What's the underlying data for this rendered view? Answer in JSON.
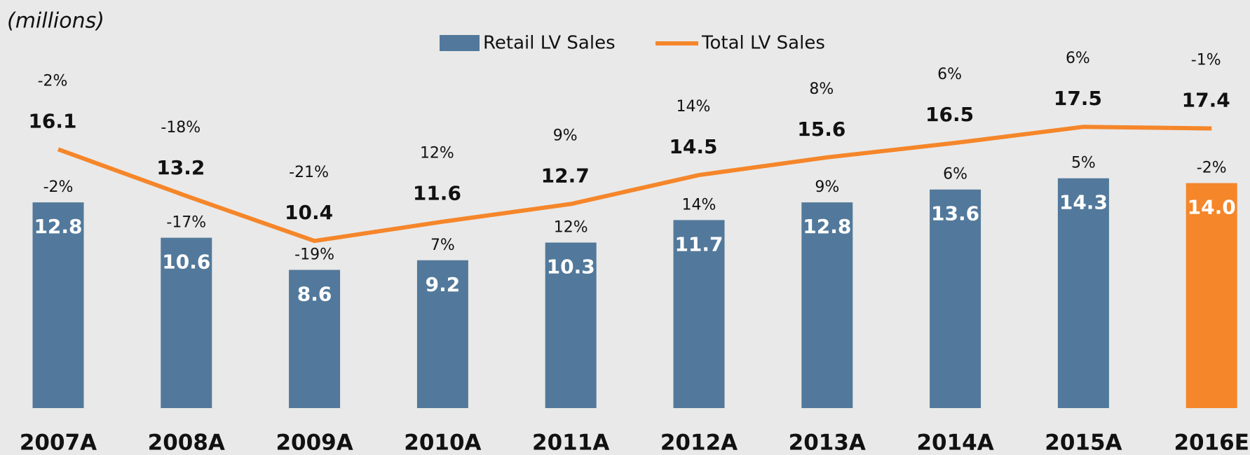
{
  "chart_data": {
    "type": "bar",
    "title": "(millions)",
    "categories": [
      "2007A",
      "2008A",
      "2009A",
      "2010A",
      "2011A",
      "2012A",
      "2013A",
      "2014A",
      "2015A",
      "2016E"
    ],
    "ylim": [
      0,
      25
    ],
    "series": [
      {
        "name": "Retail LV Sales",
        "type": "bar",
        "color": "#52799b",
        "colors": [
          "#52799b",
          "#52799b",
          "#52799b",
          "#52799b",
          "#52799b",
          "#52799b",
          "#52799b",
          "#52799b",
          "#52799b",
          "#f5862a"
        ],
        "values": [
          12.8,
          10.6,
          8.6,
          9.2,
          10.3,
          11.7,
          12.8,
          13.6,
          14.3,
          14.0
        ],
        "value_labels": [
          "12.8",
          "10.6",
          "8.6",
          "9.2",
          "10.3",
          "11.7",
          "12.8",
          "13.6",
          "14.3",
          "14.0"
        ],
        "growth": [
          "-2%",
          "-17%",
          "-19%",
          "7%",
          "12%",
          "14%",
          "9%",
          "6%",
          "5%",
          "-2%"
        ]
      },
      {
        "name": "Total LV Sales",
        "type": "line",
        "color": "#f5862a",
        "values": [
          16.1,
          13.2,
          10.4,
          11.6,
          12.7,
          14.5,
          15.6,
          16.5,
          17.5,
          17.4
        ],
        "value_labels": [
          "16.1",
          "13.2",
          "10.4",
          "11.6",
          "12.7",
          "14.5",
          "15.6",
          "16.5",
          "17.5",
          "17.4"
        ],
        "growth": [
          "-2%",
          "-18%",
          "-21%",
          "12%",
          "9%",
          "14%",
          "8%",
          "6%",
          "6%",
          "-1%"
        ]
      }
    ]
  }
}
